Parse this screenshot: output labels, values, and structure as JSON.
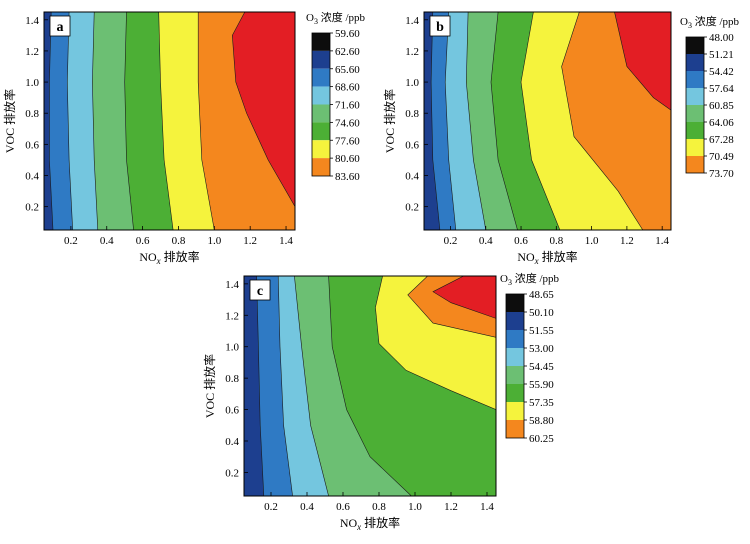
{
  "chart_data": [
    {
      "type": "contour",
      "panel_label": "a",
      "xlabel": "NOx 排放率",
      "xlabel_main": "NO",
      "xlabel_sub": "x",
      "xlabel_rest": " 排放率",
      "ylabel": "VOC 排放率",
      "xlim": [
        0.05,
        1.45
      ],
      "ylim": [
        0.05,
        1.45
      ],
      "xticks": [
        "0.2",
        "0.4",
        "0.6",
        "0.8",
        "1.0",
        "1.2",
        "1.4"
      ],
      "yticks": [
        "0.2",
        "0.4",
        "0.6",
        "0.8",
        "1.0",
        "1.2",
        "1.4"
      ],
      "colorbar_title_main": "O",
      "colorbar_title_sub": "3",
      "colorbar_title_rest": " 浓度 /ppb",
      "colorbar_levels": [
        "59.60",
        "62.60",
        "65.60",
        "68.60",
        "71.60",
        "74.60",
        "77.60",
        "80.60",
        "83.60"
      ],
      "colors": [
        "#0d0d0d",
        "#1d3f8f",
        "#2f7ac4",
        "#74c6df",
        "#6cbf73",
        "#4caf35",
        "#f5f33d",
        "#f4871e",
        "#e31e24"
      ],
      "contour_lines": [
        [
          [
            0.09,
            1.45
          ],
          [
            0.08,
            1.0
          ],
          [
            0.08,
            0.5
          ],
          [
            0.1,
            0.05
          ]
        ],
        [
          [
            0.19,
            1.45
          ],
          [
            0.18,
            1.0
          ],
          [
            0.19,
            0.5
          ],
          [
            0.21,
            0.05
          ]
        ],
        [
          [
            0.33,
            1.45
          ],
          [
            0.32,
            1.0
          ],
          [
            0.33,
            0.5
          ],
          [
            0.35,
            0.05
          ]
        ],
        [
          [
            0.51,
            1.45
          ],
          [
            0.5,
            1.0
          ],
          [
            0.51,
            0.5
          ],
          [
            0.55,
            0.05
          ]
        ],
        [
          [
            0.69,
            1.45
          ],
          [
            0.7,
            1.0
          ],
          [
            0.72,
            0.5
          ],
          [
            0.77,
            0.05
          ]
        ],
        [
          [
            0.91,
            1.45
          ],
          [
            0.91,
            1.0
          ],
          [
            0.93,
            0.5
          ],
          [
            1.0,
            0.05
          ]
        ],
        [
          [
            1.17,
            1.45
          ],
          [
            1.1,
            1.3
          ],
          [
            1.12,
            1.0
          ],
          [
            1.18,
            0.8
          ],
          [
            1.3,
            0.5
          ],
          [
            1.45,
            0.2
          ]
        ]
      ]
    },
    {
      "type": "contour",
      "panel_label": "b",
      "xlabel": "NOx 排放率",
      "xlabel_main": "NO",
      "xlabel_sub": "x",
      "xlabel_rest": " 排放率",
      "ylabel": "VOC 排放率",
      "xlim": [
        0.05,
        1.45
      ],
      "ylim": [
        0.05,
        1.45
      ],
      "xticks": [
        "0.2",
        "0.4",
        "0.6",
        "0.8",
        "1.0",
        "1.2",
        "1.4"
      ],
      "yticks": [
        "0.2",
        "0.4",
        "0.6",
        "0.8",
        "1.0",
        "1.2",
        "1.4"
      ],
      "colorbar_title_main": "O",
      "colorbar_title_sub": "3",
      "colorbar_title_rest": " 浓度 /ppb",
      "colorbar_levels": [
        "48.00",
        "51.21",
        "54.42",
        "57.64",
        "60.85",
        "64.06",
        "67.28",
        "70.49",
        "73.70"
      ],
      "colors": [
        "#0d0d0d",
        "#1d3f8f",
        "#2f7ac4",
        "#74c6df",
        "#6cbf73",
        "#4caf35",
        "#f5f33d",
        "#f4871e",
        "#e31e24"
      ],
      "contour_lines": [
        [
          [
            0.1,
            1.45
          ],
          [
            0.09,
            1.0
          ],
          [
            0.1,
            0.5
          ],
          [
            0.14,
            0.05
          ]
        ],
        [
          [
            0.19,
            1.45
          ],
          [
            0.17,
            1.0
          ],
          [
            0.19,
            0.5
          ],
          [
            0.23,
            0.05
          ]
        ],
        [
          [
            0.3,
            1.45
          ],
          [
            0.29,
            1.0
          ],
          [
            0.33,
            0.5
          ],
          [
            0.4,
            0.05
          ]
        ],
        [
          [
            0.47,
            1.45
          ],
          [
            0.43,
            1.0
          ],
          [
            0.47,
            0.5
          ],
          [
            0.58,
            0.05
          ]
        ],
        [
          [
            0.67,
            1.45
          ],
          [
            0.6,
            1.0
          ],
          [
            0.66,
            0.5
          ],
          [
            0.82,
            0.05
          ]
        ],
        [
          [
            0.93,
            1.45
          ],
          [
            0.83,
            1.1
          ],
          [
            0.9,
            0.65
          ],
          [
            1.15,
            0.3
          ],
          [
            1.29,
            0.05
          ]
        ],
        [
          [
            1.13,
            1.45
          ],
          [
            1.2,
            1.1
          ],
          [
            1.35,
            0.9
          ],
          [
            1.45,
            0.82
          ]
        ]
      ]
    },
    {
      "type": "contour",
      "panel_label": "c",
      "xlabel": "NOx 排放率",
      "xlabel_main": "NO",
      "xlabel_sub": "x",
      "xlabel_rest": " 排放率",
      "ylabel": "VOC 排放率",
      "xlim": [
        0.05,
        1.45
      ],
      "ylim": [
        0.05,
        1.45
      ],
      "xticks": [
        "0.2",
        "0.4",
        "0.6",
        "0.8",
        "1.0",
        "1.2",
        "1.4"
      ],
      "yticks": [
        "0.2",
        "0.4",
        "0.6",
        "0.8",
        "1.0",
        "1.2",
        "1.4"
      ],
      "colorbar_title_main": "O",
      "colorbar_title_sub": "3",
      "colorbar_title_rest": " 浓度 /ppb",
      "colorbar_levels": [
        "48.65",
        "50.10",
        "51.55",
        "53.00",
        "54.45",
        "55.90",
        "57.35",
        "58.80",
        "60.25"
      ],
      "colors": [
        "#0d0d0d",
        "#1d3f8f",
        "#2f7ac4",
        "#74c6df",
        "#6cbf73",
        "#4caf35",
        "#f5f33d",
        "#f4871e",
        "#e31e24"
      ],
      "contour_lines": [
        [
          [
            0.12,
            1.45
          ],
          [
            0.13,
            1.0
          ],
          [
            0.14,
            0.5
          ],
          [
            0.16,
            0.05
          ]
        ],
        [
          [
            0.24,
            1.45
          ],
          [
            0.25,
            1.0
          ],
          [
            0.27,
            0.5
          ],
          [
            0.32,
            0.05
          ]
        ],
        [
          [
            0.33,
            1.45
          ],
          [
            0.37,
            1.0
          ],
          [
            0.42,
            0.5
          ],
          [
            0.52,
            0.05
          ]
        ],
        [
          [
            0.52,
            1.45
          ],
          [
            0.54,
            1.0
          ],
          [
            0.62,
            0.6
          ],
          [
            0.75,
            0.3
          ],
          [
            0.98,
            0.05
          ]
        ],
        [
          [
            0.82,
            1.45
          ],
          [
            0.78,
            1.25
          ],
          [
            0.8,
            1.02
          ],
          [
            0.95,
            0.85
          ],
          [
            1.2,
            0.72
          ],
          [
            1.45,
            0.6
          ]
        ],
        [
          [
            1.07,
            1.45
          ],
          [
            0.96,
            1.33
          ],
          [
            1.1,
            1.15
          ],
          [
            1.45,
            1.06
          ]
        ],
        [
          [
            1.27,
            1.45
          ],
          [
            1.1,
            1.35
          ],
          [
            1.2,
            1.28
          ],
          [
            1.45,
            1.18
          ]
        ]
      ]
    }
  ]
}
